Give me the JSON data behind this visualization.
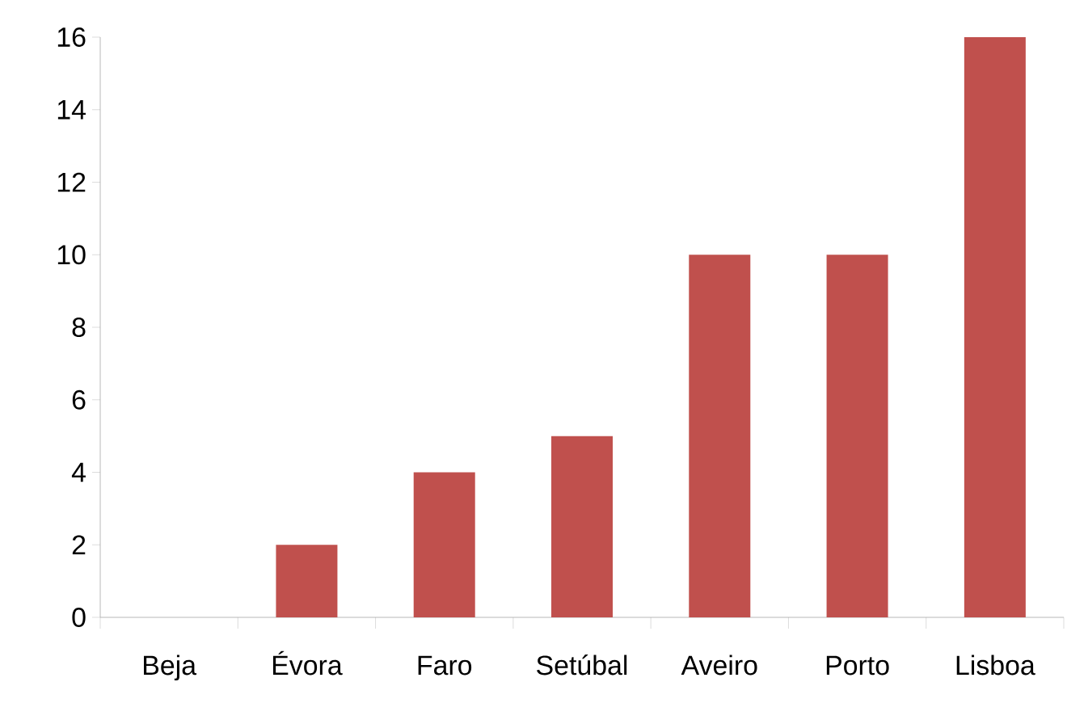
{
  "chart_data": {
    "type": "bar",
    "categories": [
      "Beja",
      "Évora",
      "Faro",
      "Setúbal",
      "Aveiro",
      "Porto",
      "Lisboa"
    ],
    "values": [
      0,
      2,
      4,
      5,
      10,
      10,
      16
    ],
    "color": "#c0504d",
    "ylim": [
      0,
      16
    ],
    "yticks": [
      0,
      2,
      4,
      6,
      8,
      10,
      12,
      14,
      16
    ]
  }
}
